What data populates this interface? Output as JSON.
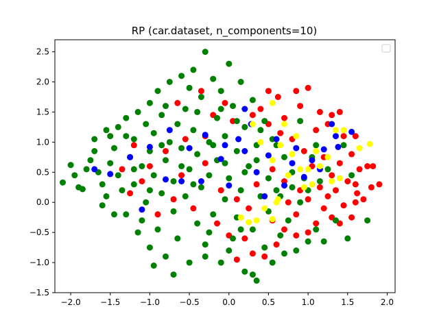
{
  "chart_data": {
    "type": "scatter",
    "title": "RP (car.dataset, n_components=10)",
    "xlabel": "",
    "ylabel": "",
    "xlim": [
      -2.2,
      2.1
    ],
    "ylim": [
      -1.5,
      2.7
    ],
    "xticks": [
      -2.0,
      -1.5,
      -1.0,
      -0.5,
      0.0,
      0.5,
      1.0,
      1.5,
      2.0
    ],
    "xtick_labels": [
      "−2.0",
      "−1.5",
      "−1.0",
      "−0.5",
      "0.0",
      "0.5",
      "1.0",
      "1.5",
      "2.0"
    ],
    "yticks": [
      -1.5,
      -1.0,
      -0.5,
      0.0,
      0.5,
      1.0,
      1.5,
      2.0,
      2.5
    ],
    "ytick_labels": [
      "−1.5",
      "−1.0",
      "−0.5",
      "0.0",
      "0.5",
      "1.0",
      "1.5",
      "2.0",
      "2.5"
    ],
    "grid": false,
    "legend": {
      "position": "top-right",
      "entries": []
    },
    "series": [
      {
        "color": "#ff0000",
        "points": [
          [
            0.5,
            1.85
          ],
          [
            0.62,
            1.75
          ],
          [
            0.85,
            1.85
          ],
          [
            1.0,
            1.9
          ],
          [
            0.9,
            1.6
          ],
          [
            1.15,
            1.5
          ],
          [
            1.3,
            1.45
          ],
          [
            1.4,
            1.5
          ],
          [
            0.7,
            1.4
          ],
          [
            1.1,
            1.2
          ],
          [
            1.25,
            1.3
          ],
          [
            1.45,
            1.1
          ],
          [
            1.6,
            1.1
          ],
          [
            1.55,
            0.8
          ],
          [
            1.65,
            0.55
          ],
          [
            1.75,
            0.6
          ],
          [
            1.82,
            0.6
          ],
          [
            1.9,
            0.3
          ],
          [
            1.8,
            0.25
          ],
          [
            1.6,
            0.3
          ],
          [
            1.5,
            0.35
          ],
          [
            1.35,
            0.2
          ],
          [
            1.25,
            0.1
          ],
          [
            1.2,
            -0.1
          ],
          [
            1.3,
            -0.25
          ],
          [
            1.4,
            -0.35
          ],
          [
            1.55,
            -0.25
          ],
          [
            1.7,
            0.05
          ],
          [
            1.6,
            0.0
          ],
          [
            1.1,
            -0.35
          ],
          [
            1.0,
            -0.5
          ],
          [
            0.85,
            -0.55
          ],
          [
            0.7,
            -0.45
          ],
          [
            0.6,
            -0.7
          ],
          [
            0.45,
            -0.9
          ],
          [
            0.3,
            -0.85
          ],
          [
            0.1,
            -0.95
          ],
          [
            0.85,
            -0.2
          ],
          [
            0.75,
            0.0
          ],
          [
            1.0,
            0.05
          ],
          [
            1.15,
            0.25
          ],
          [
            1.3,
            0.45
          ],
          [
            1.4,
            0.65
          ],
          [
            1.2,
            0.75
          ],
          [
            1.05,
            0.6
          ],
          [
            0.95,
            0.85
          ],
          [
            0.8,
            1.05
          ],
          [
            0.65,
            1.15
          ],
          [
            0.5,
            1.3
          ],
          [
            0.4,
            1.55
          ],
          [
            -0.3,
            1.1
          ],
          [
            -0.55,
            1.05
          ],
          [
            -0.8,
            0.85
          ],
          [
            -1.0,
            0.6
          ],
          [
            -1.2,
            0.95
          ],
          [
            -1.35,
            0.55
          ],
          [
            -0.6,
            0.45
          ],
          [
            -0.3,
            0.65
          ],
          [
            -0.1,
            0.2
          ],
          [
            0.1,
            0.05
          ],
          [
            0.25,
            -0.1
          ],
          [
            -0.45,
            -0.1
          ],
          [
            -0.7,
            0.05
          ],
          [
            -0.15,
            -0.35
          ],
          [
            0.0,
            -0.55
          ],
          [
            0.2,
            -0.6
          ],
          [
            0.35,
            0.3
          ],
          [
            0.55,
            0.55
          ],
          [
            0.7,
            0.35
          ],
          [
            0.9,
            0.2
          ],
          [
            -0.2,
            1.45
          ],
          [
            0.05,
            1.35
          ],
          [
            -0.65,
            1.65
          ],
          [
            -0.35,
            1.85
          ],
          [
            -0.05,
            1.65
          ],
          [
            0.3,
            1.45
          ],
          [
            -1.1,
            0.35
          ],
          [
            -1.25,
            0.15
          ],
          [
            -0.9,
            -0.2
          ],
          [
            0.55,
            -0.3
          ],
          [
            1.45,
            -0.05
          ],
          [
            1.62,
            0.15
          ]
        ]
      },
      {
        "color": "#008000",
        "points": [
          [
            -2.1,
            0.33
          ],
          [
            -2.0,
            0.62
          ],
          [
            -1.9,
            0.25
          ],
          [
            -1.85,
            0.22
          ],
          [
            -1.8,
            0.55
          ],
          [
            -1.75,
            0.7
          ],
          [
            -1.7,
            0.85
          ],
          [
            -1.65,
            0.5
          ],
          [
            -1.6,
            0.3
          ],
          [
            -1.6,
            -0.05
          ],
          [
            -1.55,
            0.1
          ],
          [
            -1.5,
            0.65
          ],
          [
            -1.5,
            1.1
          ],
          [
            -1.45,
            0.9
          ],
          [
            -1.4,
            0.45
          ],
          [
            -1.4,
            1.25
          ],
          [
            -1.35,
            0.2
          ],
          [
            -1.3,
            1.4
          ],
          [
            -1.3,
            -0.2
          ],
          [
            -1.25,
            0.75
          ],
          [
            -1.2,
            1.05
          ],
          [
            -1.2,
            0.3
          ],
          [
            -1.15,
            -0.5
          ],
          [
            -1.15,
            1.5
          ],
          [
            -1.1,
            0.6
          ],
          [
            -1.1,
            -0.3
          ],
          [
            -1.05,
            1.3
          ],
          [
            -1.05,
            0.0
          ],
          [
            -1.0,
            1.65
          ],
          [
            -1.0,
            0.85
          ],
          [
            -1.0,
            -0.75
          ],
          [
            -0.95,
            0.45
          ],
          [
            -0.95,
            1.15
          ],
          [
            -0.9,
            -0.45
          ],
          [
            -0.9,
            1.85
          ],
          [
            -0.85,
            0.15
          ],
          [
            -0.85,
            1.45
          ],
          [
            -0.8,
            0.7
          ],
          [
            -0.8,
            -0.9
          ],
          [
            -0.75,
            2.0
          ],
          [
            -0.75,
            1.0
          ],
          [
            -0.7,
            -0.15
          ],
          [
            -0.7,
            0.35
          ],
          [
            -0.65,
            1.3
          ],
          [
            -0.65,
            -0.6
          ],
          [
            -0.6,
            2.1
          ],
          [
            -0.6,
            0.9
          ],
          [
            -0.55,
            0.1
          ],
          [
            -0.55,
            1.55
          ],
          [
            -0.5,
            -1.0
          ],
          [
            -0.5,
            0.55
          ],
          [
            -0.45,
            2.2
          ],
          [
            -0.45,
            1.2
          ],
          [
            -0.4,
            -0.35
          ],
          [
            -0.4,
            0.8
          ],
          [
            -0.35,
            1.75
          ],
          [
            -0.35,
            0.25
          ],
          [
            -0.3,
            2.5
          ],
          [
            -0.3,
            -0.7
          ],
          [
            -0.25,
            1.0
          ],
          [
            -0.25,
            0.45
          ],
          [
            -0.2,
            2.05
          ],
          [
            -0.2,
            -0.2
          ],
          [
            -0.15,
            1.4
          ],
          [
            -0.15,
            0.7
          ],
          [
            -0.1,
            -1.0
          ],
          [
            -0.1,
            1.85
          ],
          [
            -0.05,
            0.05
          ],
          [
            -0.05,
            1.1
          ],
          [
            0.0,
            2.3
          ],
          [
            0.0,
            0.4
          ],
          [
            0.05,
            -0.6
          ],
          [
            0.05,
            1.6
          ],
          [
            0.1,
            0.85
          ],
          [
            0.1,
            -0.25
          ],
          [
            0.15,
            2.0
          ],
          [
            0.15,
            0.2
          ],
          [
            0.2,
            1.25
          ],
          [
            0.2,
            -1.15
          ],
          [
            0.25,
            0.6
          ],
          [
            0.3,
            1.7
          ],
          [
            0.3,
            -0.45
          ],
          [
            0.35,
            0.95
          ],
          [
            0.35,
            -1.3
          ],
          [
            0.4,
            0.1
          ],
          [
            0.45,
            1.35
          ],
          [
            0.45,
            -0.75
          ],
          [
            0.5,
            0.4
          ],
          [
            0.55,
            1.05
          ],
          [
            0.55,
            -1.0
          ],
          [
            0.6,
            0.2
          ],
          [
            0.65,
            -0.55
          ],
          [
            0.7,
            0.75
          ],
          [
            0.75,
            -0.3
          ],
          [
            0.8,
            0.5
          ],
          [
            0.85,
            -0.8
          ],
          [
            0.9,
            0.0
          ],
          [
            0.95,
            0.4
          ],
          [
            1.0,
            -0.65
          ],
          [
            1.05,
            0.75
          ],
          [
            1.1,
            -0.45
          ],
          [
            1.15,
            0.35
          ],
          [
            1.2,
            -0.65
          ],
          [
            1.25,
            0.55
          ],
          [
            1.35,
            -0.3
          ],
          [
            1.45,
            0.95
          ],
          [
            1.5,
            -0.6
          ],
          [
            1.55,
            0.45
          ],
          [
            1.75,
            -0.3
          ],
          [
            -1.95,
            0.45
          ],
          [
            -1.7,
            1.05
          ],
          [
            -1.55,
            1.2
          ],
          [
            -1.45,
            -0.2
          ],
          [
            -1.3,
            1.1
          ],
          [
            -1.2,
            0.55
          ],
          [
            -0.95,
            -1.05
          ],
          [
            -0.8,
            1.6
          ],
          [
            -0.7,
            -1.2
          ],
          [
            -0.6,
            0.6
          ],
          [
            -0.5,
            1.9
          ],
          [
            -0.4,
            1.5
          ],
          [
            -0.3,
            -0.9
          ],
          [
            -0.2,
            0.95
          ],
          [
            -0.1,
            1.55
          ],
          [
            0.0,
            -0.8
          ],
          [
            0.1,
            1.35
          ],
          [
            0.2,
            0.5
          ],
          [
            0.3,
            -1.2
          ],
          [
            0.4,
            1.2
          ],
          [
            0.5,
            -0.15
          ],
          [
            0.6,
            0.95
          ],
          [
            0.7,
            -0.85
          ],
          [
            0.8,
            0.25
          ],
          [
            0.9,
            1.35
          ],
          [
            1.0,
            0.2
          ],
          [
            1.1,
            0.95
          ],
          [
            0.35,
            0.7
          ],
          [
            -0.05,
            0.65
          ],
          [
            -0.45,
            0.3
          ],
          [
            -0.85,
            0.95
          ],
          [
            -1.0,
            0.2
          ],
          [
            -0.25,
            -0.5
          ],
          [
            0.15,
            -0.45
          ],
          [
            0.65,
            0.1
          ]
        ]
      },
      {
        "color": "#0000ff",
        "points": [
          [
            -1.7,
            0.55
          ],
          [
            -1.5,
            0.47
          ],
          [
            -1.25,
            0.75
          ],
          [
            -1.1,
            -0.12
          ],
          [
            -1.0,
            0.92
          ],
          [
            -0.8,
            0.38
          ],
          [
            -0.75,
            1.2
          ],
          [
            -0.6,
            0.35
          ],
          [
            -0.5,
            0.9
          ],
          [
            -0.35,
            0.35
          ],
          [
            -0.3,
            1.12
          ],
          [
            -0.1,
            0.72
          ],
          [
            0.0,
            0.28
          ],
          [
            0.12,
            1.05
          ],
          [
            0.2,
            0.85
          ],
          [
            0.35,
            0.5
          ],
          [
            0.45,
            0.1
          ],
          [
            0.5,
            0.78
          ],
          [
            0.6,
            1.05
          ],
          [
            0.7,
            0.28
          ],
          [
            0.8,
            0.65
          ],
          [
            0.85,
            0.9
          ],
          [
            0.95,
            0.42
          ],
          [
            1.05,
            0.7
          ],
          [
            1.15,
            0.55
          ],
          [
            1.2,
            0.88
          ],
          [
            1.3,
            1.3
          ],
          [
            1.35,
            1.1
          ],
          [
            1.38,
            0.92
          ],
          [
            1.55,
            1.17
          ],
          [
            0.2,
            1.55
          ],
          [
            -0.05,
            0.95
          ],
          [
            0.28,
            1.3
          ]
        ]
      },
      {
        "color": "#ffff00",
        "points": [
          [
            0.3,
            1.3
          ],
          [
            0.55,
            1.65
          ],
          [
            0.7,
            1.3
          ],
          [
            0.85,
            1.1
          ],
          [
            0.65,
            0.95
          ],
          [
            0.55,
            0.7
          ],
          [
            0.75,
            0.45
          ],
          [
            0.9,
            0.55
          ],
          [
            1.05,
            0.3
          ],
          [
            1.0,
            0.55
          ],
          [
            1.15,
            0.6
          ],
          [
            1.25,
            0.75
          ],
          [
            1.1,
            0.85
          ],
          [
            1.35,
            1.2
          ],
          [
            1.45,
            1.2
          ],
          [
            1.65,
            0.9
          ],
          [
            1.78,
            0.97
          ],
          [
            1.4,
            0.4
          ],
          [
            1.3,
            0.35
          ],
          [
            0.95,
            0.25
          ],
          [
            0.6,
            0.0
          ],
          [
            0.45,
            -0.1
          ],
          [
            0.55,
            -0.28
          ],
          [
            0.35,
            -0.3
          ],
          [
            0.25,
            -0.33
          ],
          [
            0.15,
            -0.25
          ],
          [
            0.62,
            0.05
          ],
          [
            0.8,
            0.8
          ],
          [
            0.4,
            1.0
          ]
        ]
      }
    ]
  }
}
